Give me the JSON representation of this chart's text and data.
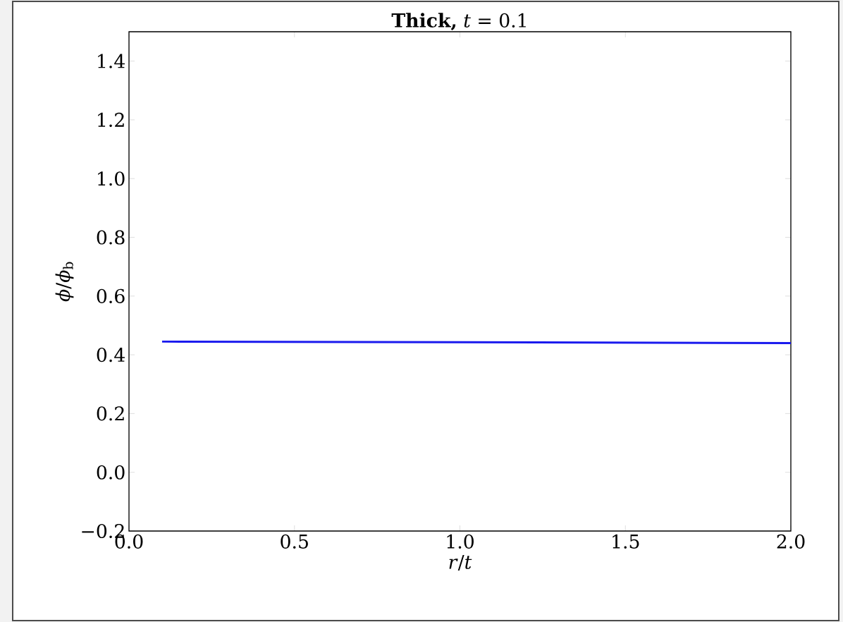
{
  "chart_data": {
    "type": "line",
    "title": "**Thick,** *t* = 0.1",
    "xlabel": "*r*/*t*",
    "ylabel": "*ϕ*/*ϕ*$_{b}$",
    "xlim": [
      0,
      2
    ],
    "ylim": [
      -0.2,
      1.5
    ],
    "xticks": [
      {
        "value": 0,
        "label": "0.0"
      },
      {
        "value": 0.5,
        "label": "0.5"
      },
      {
        "value": 1,
        "label": "1.0"
      },
      {
        "value": 1.5,
        "label": "1.5"
      },
      {
        "value": 2,
        "label": "2.0"
      }
    ],
    "yticks": [
      {
        "value": -0.2,
        "label": "−0.2"
      },
      {
        "value": 0,
        "label": "0.0"
      },
      {
        "value": 0.2,
        "label": "0.2"
      },
      {
        "value": 0.4,
        "label": "0.4"
      },
      {
        "value": 0.6,
        "label": "0.6"
      },
      {
        "value": 0.8,
        "label": "0.8"
      },
      {
        "value": 1,
        "label": "1.0"
      },
      {
        "value": 1.2,
        "label": "1.2"
      },
      {
        "value": 1.4,
        "label": "1.4"
      }
    ],
    "series": [
      {
        "color": "#1a1aee",
        "x": [
          0.1,
          1.0,
          2.0
        ],
        "values": [
          0.445,
          0.443,
          0.44
        ]
      }
    ]
  }
}
